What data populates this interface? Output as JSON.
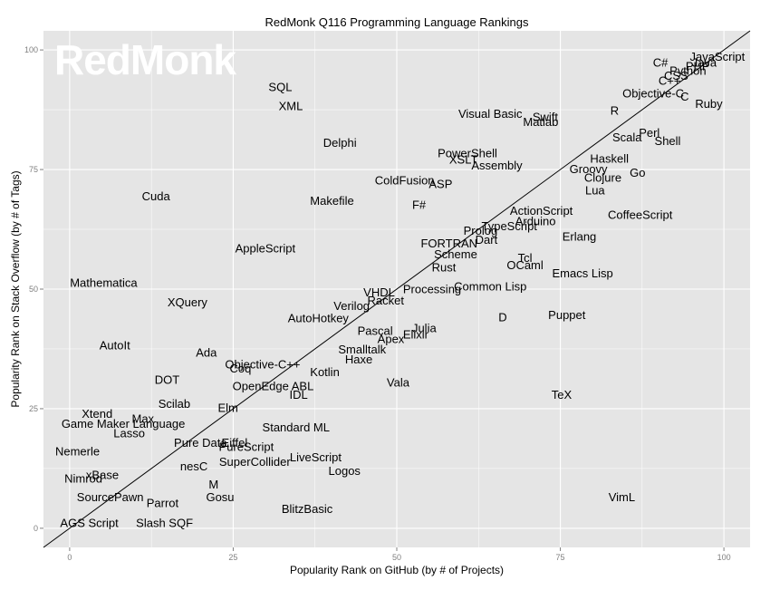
{
  "chart_data": {
    "type": "scatter",
    "title": "RedMonk Q116 Programming Language Rankings",
    "xlabel": "Popularity Rank on GitHub (by # of Projects)",
    "ylabel": "Popularity Rank on Stack Overflow (by # of Tags)",
    "watermark": "RedMonk",
    "xlim": [
      -4,
      104
    ],
    "ylim": [
      -4,
      104
    ],
    "xticks": [
      0,
      25,
      50,
      75,
      100
    ],
    "yticks": [
      0,
      25,
      50,
      75,
      100
    ],
    "grid": true,
    "background": "#e5e5e5",
    "gridline_color": "#ffffff",
    "label_color": "#000000",
    "trend_line": {
      "from": [
        -4,
        -4
      ],
      "to": [
        104,
        104
      ]
    },
    "points": [
      {
        "label": "JavaScript",
        "x": 99,
        "y": 98.5
      },
      {
        "label": "Java",
        "x": 97,
        "y": 97.3
      },
      {
        "label": "PHP",
        "x": 96,
        "y": 96.5
      },
      {
        "label": "Python",
        "x": 94.5,
        "y": 95.6
      },
      {
        "label": "C#",
        "x": 90.3,
        "y": 97.3
      },
      {
        "label": "CSS",
        "x": 92.7,
        "y": 94.5
      },
      {
        "label": "C++",
        "x": 91.7,
        "y": 93.5
      },
      {
        "label": "Objective-C",
        "x": 89.2,
        "y": 90.8
      },
      {
        "label": "C",
        "x": 94,
        "y": 90.2
      },
      {
        "label": "Ruby",
        "x": 97.7,
        "y": 88.7
      },
      {
        "label": "R",
        "x": 83.3,
        "y": 87.2
      },
      {
        "label": "Visual Basic",
        "x": 64.3,
        "y": 86.6
      },
      {
        "label": "Swift",
        "x": 72.7,
        "y": 85.9
      },
      {
        "label": "Matlab",
        "x": 72,
        "y": 84.9
      },
      {
        "label": "Perl",
        "x": 88.6,
        "y": 82.6
      },
      {
        "label": "Scala",
        "x": 85.2,
        "y": 81.6
      },
      {
        "label": "Shell",
        "x": 91.4,
        "y": 80.9
      },
      {
        "label": "Haskell",
        "x": 82.5,
        "y": 77.2
      },
      {
        "label": "PowerShell",
        "x": 60.8,
        "y": 78.3
      },
      {
        "label": "XSLT",
        "x": 60.2,
        "y": 77
      },
      {
        "label": "Assembly",
        "x": 65.3,
        "y": 75.8
      },
      {
        "label": "Groovy",
        "x": 79.3,
        "y": 75
      },
      {
        "label": "Go",
        "x": 86.8,
        "y": 74.3
      },
      {
        "label": "Clojure",
        "x": 81.5,
        "y": 73.2
      },
      {
        "label": "Lua",
        "x": 80.3,
        "y": 70.6
      },
      {
        "label": "ColdFusion",
        "x": 51.2,
        "y": 72.6
      },
      {
        "label": "ASP",
        "x": 56.7,
        "y": 71.9
      },
      {
        "label": "Delphi",
        "x": 41.3,
        "y": 80.5
      },
      {
        "label": "SQL",
        "x": 32.2,
        "y": 92.2
      },
      {
        "label": "XML",
        "x": 33.8,
        "y": 88.2
      },
      {
        "label": "Cuda",
        "x": 13.2,
        "y": 69.3
      },
      {
        "label": "Makefile",
        "x": 40.1,
        "y": 68.4
      },
      {
        "label": "F#",
        "x": 53.4,
        "y": 67.5
      },
      {
        "label": "ActionScript",
        "x": 72.1,
        "y": 66.3
      },
      {
        "label": "CoffeeScript",
        "x": 87.2,
        "y": 65.4
      },
      {
        "label": "Arduino",
        "x": 71.2,
        "y": 64.1
      },
      {
        "label": "TypeScript",
        "x": 67.2,
        "y": 63.1
      },
      {
        "label": "Prolog",
        "x": 62.8,
        "y": 62.1
      },
      {
        "label": "Erlang",
        "x": 77.9,
        "y": 60.9
      },
      {
        "label": "Dart",
        "x": 63.7,
        "y": 60.2
      },
      {
        "label": "FORTRAN",
        "x": 58,
        "y": 59.5
      },
      {
        "label": "Scheme",
        "x": 59,
        "y": 57.2
      },
      {
        "label": "AppleScript",
        "x": 29.9,
        "y": 58.4
      },
      {
        "label": "Tcl",
        "x": 69.6,
        "y": 56.4
      },
      {
        "label": "OCaml",
        "x": 69.6,
        "y": 54.9
      },
      {
        "label": "Rust",
        "x": 57.2,
        "y": 54.5
      },
      {
        "label": "Emacs Lisp",
        "x": 78.4,
        "y": 53.2
      },
      {
        "label": "Mathematica",
        "x": 5.2,
        "y": 51.2
      },
      {
        "label": "Common Lisp",
        "x": 64.3,
        "y": 50.5
      },
      {
        "label": "Processing",
        "x": 55.4,
        "y": 49.9
      },
      {
        "label": "VHDL",
        "x": 47.3,
        "y": 49.2
      },
      {
        "label": "XQuery",
        "x": 18,
        "y": 47.2
      },
      {
        "label": "Racket",
        "x": 48.3,
        "y": 47.5
      },
      {
        "label": "Verilog",
        "x": 43.1,
        "y": 46.4
      },
      {
        "label": "D",
        "x": 66.2,
        "y": 44
      },
      {
        "label": "Puppet",
        "x": 76,
        "y": 44.5
      },
      {
        "label": "AutoHotkey",
        "x": 38,
        "y": 43.8
      },
      {
        "label": "Julia",
        "x": 54.2,
        "y": 41.8
      },
      {
        "label": "Pascal",
        "x": 46.7,
        "y": 41.2
      },
      {
        "label": "Elixir",
        "x": 52.9,
        "y": 40.4
      },
      {
        "label": "Apex",
        "x": 49.1,
        "y": 39.5
      },
      {
        "label": "AutoIt",
        "x": 6.9,
        "y": 38.2
      },
      {
        "label": "Smalltalk",
        "x": 44.7,
        "y": 37.3
      },
      {
        "label": "Ada",
        "x": 20.9,
        "y": 36.6
      },
      {
        "label": "Haxe",
        "x": 44.2,
        "y": 35.2
      },
      {
        "label": "Objective-C++",
        "x": 29.5,
        "y": 34.2
      },
      {
        "label": "Coq",
        "x": 26.1,
        "y": 33.3
      },
      {
        "label": "Kotlin",
        "x": 39,
        "y": 32.6
      },
      {
        "label": "DOT",
        "x": 14.9,
        "y": 31
      },
      {
        "label": "Vala",
        "x": 50.2,
        "y": 30.4
      },
      {
        "label": "OpenEdge ABL",
        "x": 31.1,
        "y": 29.6
      },
      {
        "label": "IDL",
        "x": 35,
        "y": 27.8
      },
      {
        "label": "TeX",
        "x": 75.2,
        "y": 27.8
      },
      {
        "label": "Scilab",
        "x": 16,
        "y": 25.9
      },
      {
        "label": "Elm",
        "x": 24.2,
        "y": 25.1
      },
      {
        "label": "Xtend",
        "x": 4.2,
        "y": 23.9
      },
      {
        "label": "Max",
        "x": 11.2,
        "y": 22.8
      },
      {
        "label": "Game Maker Language",
        "x": 8.2,
        "y": 21.8
      },
      {
        "label": "Standard ML",
        "x": 34.6,
        "y": 21
      },
      {
        "label": "Lasso",
        "x": 9.1,
        "y": 19.8
      },
      {
        "label": "Pure Data",
        "x": 20,
        "y": 17.8
      },
      {
        "label": "Eiffel",
        "x": 25.2,
        "y": 17.8
      },
      {
        "label": "PureScript",
        "x": 27,
        "y": 16.9
      },
      {
        "label": "Nemerle",
        "x": 1.2,
        "y": 16
      },
      {
        "label": "LiveScript",
        "x": 37.6,
        "y": 14.8
      },
      {
        "label": "SuperCollider",
        "x": 28.3,
        "y": 13.8
      },
      {
        "label": "nesC",
        "x": 19,
        "y": 12.9
      },
      {
        "label": "Logos",
        "x": 42,
        "y": 11.9
      },
      {
        "label": "xBase",
        "x": 5,
        "y": 11.1
      },
      {
        "label": "Nimrod",
        "x": 2.1,
        "y": 10.3
      },
      {
        "label": "M",
        "x": 22,
        "y": 9.1
      },
      {
        "label": "SourcePawn",
        "x": 6.2,
        "y": 6.4
      },
      {
        "label": "Gosu",
        "x": 23,
        "y": 6.4
      },
      {
        "label": "VimL",
        "x": 84.4,
        "y": 6.4
      },
      {
        "label": "Parrot",
        "x": 14.2,
        "y": 5.2
      },
      {
        "label": "BlitzBasic",
        "x": 36.3,
        "y": 4
      },
      {
        "label": "AGS Script",
        "x": 3,
        "y": 1
      },
      {
        "label": "Slash SQF",
        "x": 14.5,
        "y": 1
      }
    ]
  }
}
